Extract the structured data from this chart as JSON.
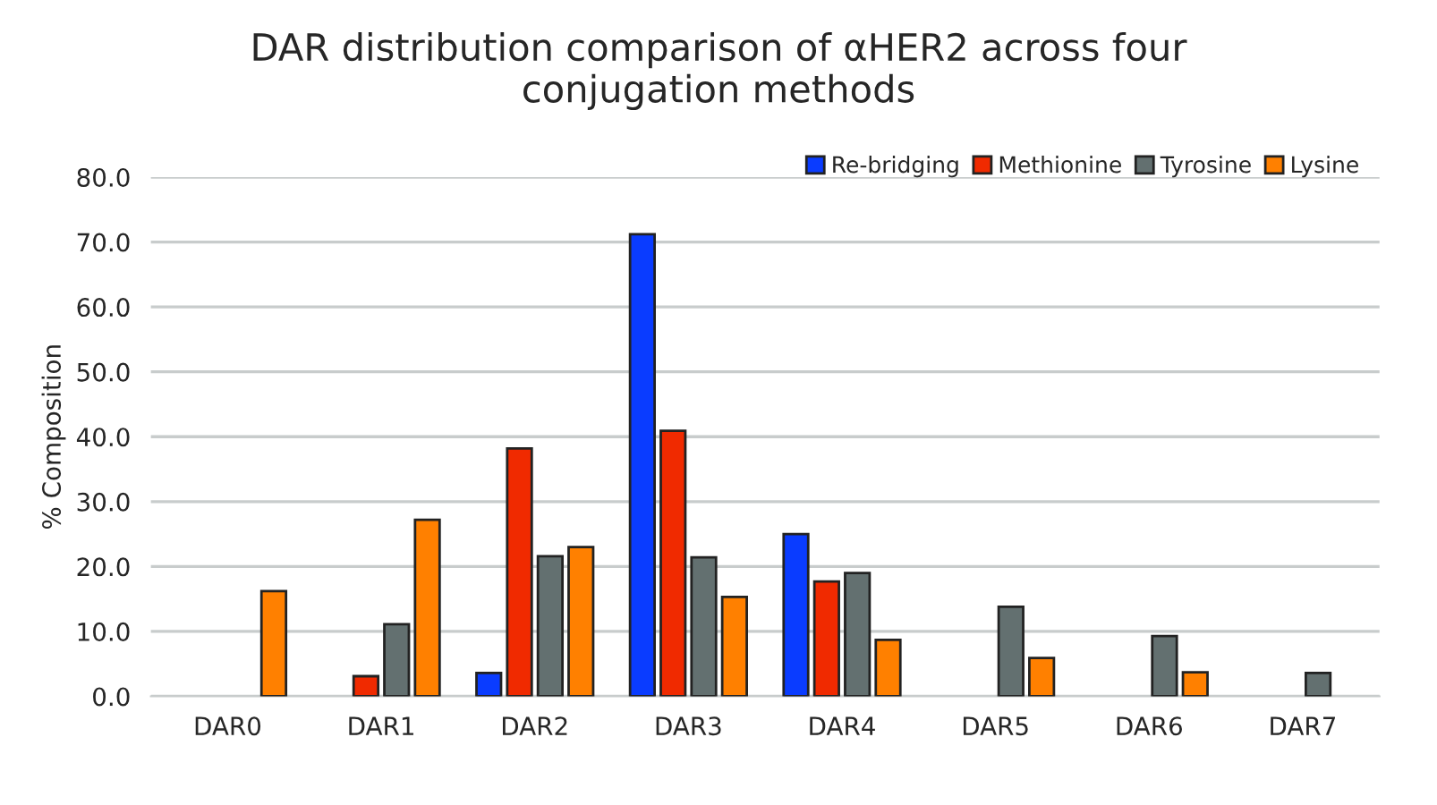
{
  "chart_data": {
    "type": "bar",
    "title": "DAR distribution comparison of αHER2 across four\nconjugation methods",
    "ylabel": "% Composition",
    "categories": [
      "DAR0",
      "DAR1",
      "DAR2",
      "DAR3",
      "DAR4",
      "DAR5",
      "DAR6",
      "DAR7"
    ],
    "series": [
      {
        "name": "Re-bridging",
        "color": "#0a3cff",
        "values": [
          null,
          null,
          3.6,
          71.2,
          25.0,
          null,
          null,
          null
        ]
      },
      {
        "name": "Methionine",
        "color": "#f02a00",
        "values": [
          null,
          3.1,
          38.2,
          40.9,
          17.7,
          null,
          null,
          null
        ]
      },
      {
        "name": "Tyrosine",
        "color": "#637070",
        "values": [
          null,
          11.1,
          21.6,
          21.4,
          19.0,
          13.8,
          9.3,
          3.6
        ]
      },
      {
        "name": "Lysine",
        "color": "#ff8000",
        "values": [
          16.2,
          27.2,
          23.0,
          15.3,
          8.7,
          5.9,
          3.7,
          null
        ]
      }
    ],
    "ylim": [
      0,
      80
    ],
    "yticks": [
      {
        "value": 0,
        "label": "0.0"
      },
      {
        "value": 10,
        "label": "10.0"
      },
      {
        "value": 20,
        "label": "20.0"
      },
      {
        "value": 30,
        "label": "30.0"
      },
      {
        "value": 40,
        "label": "40.0"
      },
      {
        "value": 50,
        "label": "50.0"
      },
      {
        "value": 60,
        "label": "60.0"
      },
      {
        "value": 70,
        "label": "70.0"
      },
      {
        "value": 80,
        "label": "80.0"
      }
    ],
    "grid": "y",
    "legend": "top right"
  }
}
